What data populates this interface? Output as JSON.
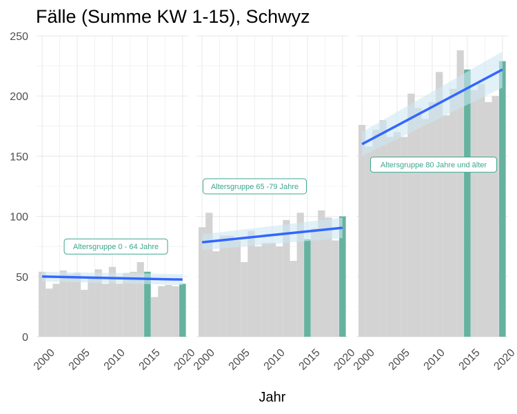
{
  "chart_data": {
    "type": "bar",
    "title": "Fälle (Summe KW 1-15), Schwyz",
    "xlabel": "Jahr",
    "ylabel": "",
    "ylim": [
      0,
      250
    ],
    "yticks": [
      0,
      50,
      100,
      150,
      200,
      250
    ],
    "xlim": [
      1999.2,
      2020.8
    ],
    "xticks": [
      "2000",
      "2005",
      "2010",
      "2015",
      "2020"
    ],
    "grid": true,
    "legend": "none",
    "colors": {
      "bar": "#d3d3d3",
      "highlight": "#66b2a0",
      "trend": "#3366ff",
      "band": "#cde8f2",
      "label": "#3aa68e",
      "grid": "#ebebeb"
    },
    "years": [
      2000,
      2001,
      2002,
      2003,
      2004,
      2005,
      2006,
      2007,
      2008,
      2009,
      2010,
      2011,
      2012,
      2013,
      2014,
      2015,
      2016,
      2017,
      2018,
      2019,
      2020
    ],
    "highlight_years": [
      2015,
      2020
    ],
    "panels": [
      {
        "label": "Altersgruppe 0 - 64 Jahre",
        "values": [
          54,
          40,
          44,
          55,
          52,
          53,
          39,
          50,
          56,
          44,
          58,
          44,
          53,
          54,
          62,
          54,
          33,
          42,
          43,
          42,
          44
        ],
        "trend": {
          "start": 50,
          "end": 47.5
        },
        "band": {
          "lower_start": 46,
          "upper_start": 54,
          "lower_end": 43,
          "upper_end": 52
        }
      },
      {
        "label": "Altersgruppe 65 -79 Jahre",
        "values": [
          91,
          103,
          71,
          84,
          84,
          80,
          62,
          88,
          75,
          78,
          78,
          75,
          97,
          63,
          103,
          81,
          90,
          105,
          99,
          80,
          100
        ],
        "trend": {
          "start": 78.5,
          "end": 90.5
        },
        "band": {
          "lower_start": 72,
          "upper_start": 85,
          "lower_end": 82,
          "upper_end": 99
        }
      },
      {
        "label": "Altersgruppe 80 Jahre und älter",
        "values": [
          176,
          158,
          172,
          180,
          166,
          170,
          166,
          202,
          190,
          181,
          195,
          220,
          184,
          206,
          238,
          222,
          205,
          210,
          195,
          200,
          229
        ],
        "trend": {
          "start": 160,
          "end": 222
        },
        "band": {
          "lower_start": 150,
          "upper_start": 170,
          "lower_end": 207,
          "upper_end": 237
        }
      }
    ]
  }
}
